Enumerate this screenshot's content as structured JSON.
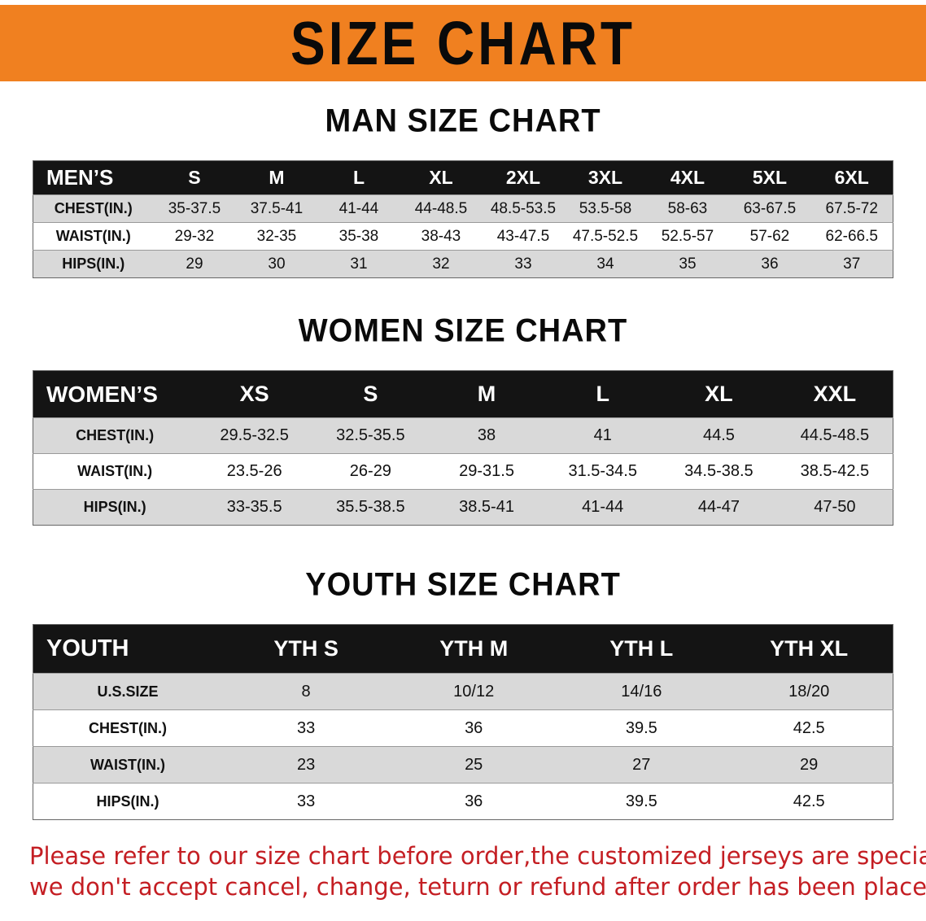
{
  "colors": {
    "banner-bg": "#F08020",
    "header-bg": "#141414",
    "row-alt": "#d9d9d9",
    "disclaimer-color": "#c41e23"
  },
  "banner": {
    "title": "SIZE CHART"
  },
  "sections": {
    "men": {
      "heading": "MAN SIZE CHART",
      "table": {
        "header": [
          "MEN’S",
          "S",
          "M",
          "L",
          "XL",
          "2XL",
          "3XL",
          "4XL",
          "5XL",
          "6XL"
        ],
        "rows": [
          [
            "CHEST(IN.)",
            "35-37.5",
            "37.5-41",
            "41-44",
            "44-48.5",
            "48.5-53.5",
            "53.5-58",
            "58-63",
            "63-67.5",
            "67.5-72"
          ],
          [
            "WAIST(IN.)",
            "29-32",
            "32-35",
            "35-38",
            "38-43",
            "43-47.5",
            "47.5-52.5",
            "52.5-57",
            "57-62",
            "62-66.5"
          ],
          [
            "HIPS(IN.)",
            "29",
            "30",
            "31",
            "32",
            "33",
            "34",
            "35",
            "36",
            "37"
          ]
        ]
      }
    },
    "women": {
      "heading": "WOMEN SIZE CHART",
      "table": {
        "header": [
          "WOMEN’S",
          "XS",
          "S",
          "M",
          "L",
          "XL",
          "XXL"
        ],
        "rows": [
          [
            "CHEST(IN.)",
            "29.5-32.5",
            "32.5-35.5",
            "38",
            "41",
            "44.5",
            "44.5-48.5"
          ],
          [
            "WAIST(IN.)",
            "23.5-26",
            "26-29",
            "29-31.5",
            "31.5-34.5",
            "34.5-38.5",
            "38.5-42.5"
          ],
          [
            "HIPS(IN.)",
            "33-35.5",
            "35.5-38.5",
            "38.5-41",
            "41-44",
            "44-47",
            "47-50"
          ]
        ]
      }
    },
    "youth": {
      "heading": "YOUTH SIZE CHART",
      "table": {
        "header": [
          "YOUTH",
          "YTH S",
          "YTH M",
          "YTH L",
          "YTH XL"
        ],
        "rows": [
          [
            "U.S.SIZE",
            "8",
            "10/12",
            "14/16",
            "18/20"
          ],
          [
            "CHEST(IN.)",
            "33",
            "36",
            "39.5",
            "42.5"
          ],
          [
            "WAIST(IN.)",
            "23",
            "25",
            "27",
            "29"
          ],
          [
            "HIPS(IN.)",
            "33",
            "36",
            "39.5",
            "42.5"
          ]
        ]
      }
    }
  },
  "disclaimer": {
    "lines": [
      "Please refer to our size chart before order,the customized jerseys are special products,",
      "we don't accept cancel, change, teturn or refund after order has been placed!"
    ]
  }
}
